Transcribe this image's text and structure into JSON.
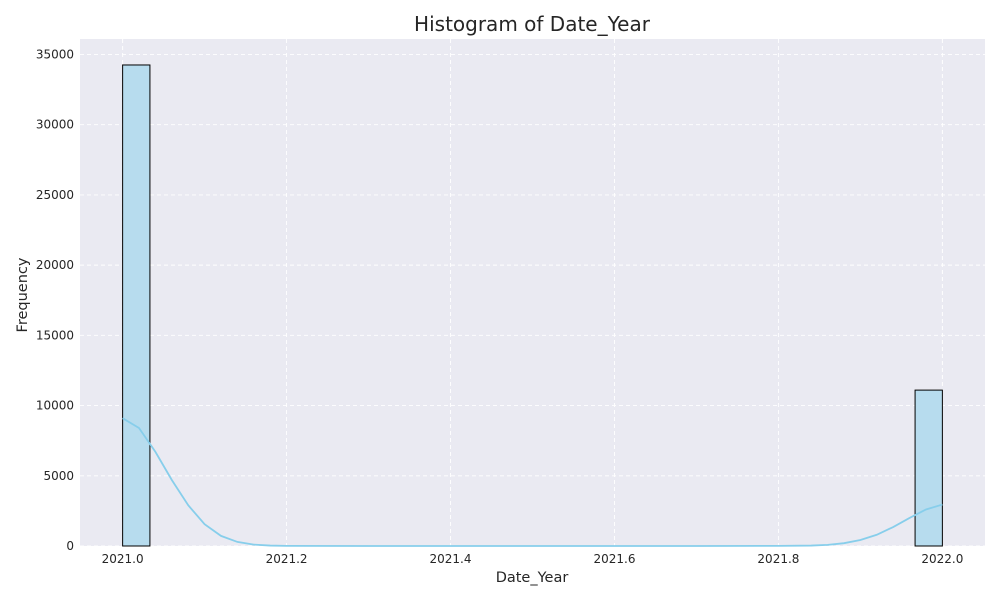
{
  "chart_data": {
    "type": "bar",
    "title": "Histogram of Date_Year",
    "xlabel": "Date_Year",
    "ylabel": "Frequency",
    "xlim": [
      1999.95,
      2022.05
    ],
    "xlim_note": "",
    "x_range": [
      2020.948,
      2022.052
    ],
    "y_range": [
      0,
      36100
    ],
    "x_ticks": [
      "2021.0",
      "2021.2",
      "2021.4",
      "2021.6",
      "2021.8",
      "2022.0"
    ],
    "x_tick_values": [
      2021.0,
      2021.2,
      2021.4,
      2021.6,
      2021.8,
      2022.0
    ],
    "y_ticks": [
      "0",
      "5000",
      "10000",
      "15000",
      "20000",
      "25000",
      "30000",
      "35000"
    ],
    "y_tick_values": [
      0,
      5000,
      10000,
      15000,
      20000,
      25000,
      30000,
      35000
    ],
    "grid": true,
    "bins": [
      {
        "x_start": 2021.0,
        "x_end": 2021.0333,
        "value": 34250
      },
      {
        "x_start": 2021.9667,
        "x_end": 2022.0,
        "value": 11100
      }
    ],
    "kde": {
      "x": [
        2021.0,
        2021.02,
        2021.04,
        2021.06,
        2021.08,
        2021.1,
        2021.12,
        2021.14,
        2021.16,
        2021.18,
        2021.2,
        2021.3,
        2021.4,
        2021.5,
        2021.6,
        2021.7,
        2021.8,
        2021.84,
        2021.86,
        2021.88,
        2021.9,
        2021.92,
        2021.94,
        2021.96,
        2021.98,
        2022.0
      ],
      "y": [
        9100,
        8400,
        6700,
        4700,
        2900,
        1550,
        720,
        290,
        100,
        30,
        8,
        0,
        0,
        0,
        0,
        0,
        8,
        30,
        80,
        200,
        430,
        800,
        1350,
        2000,
        2600,
        2950
      ]
    },
    "colors": {
      "background": "#eaeaf2",
      "bar_fill": "#b7dcee",
      "bar_stroke": "#000000",
      "kde_line": "#87ceeb",
      "grid": "#ffffff"
    }
  }
}
